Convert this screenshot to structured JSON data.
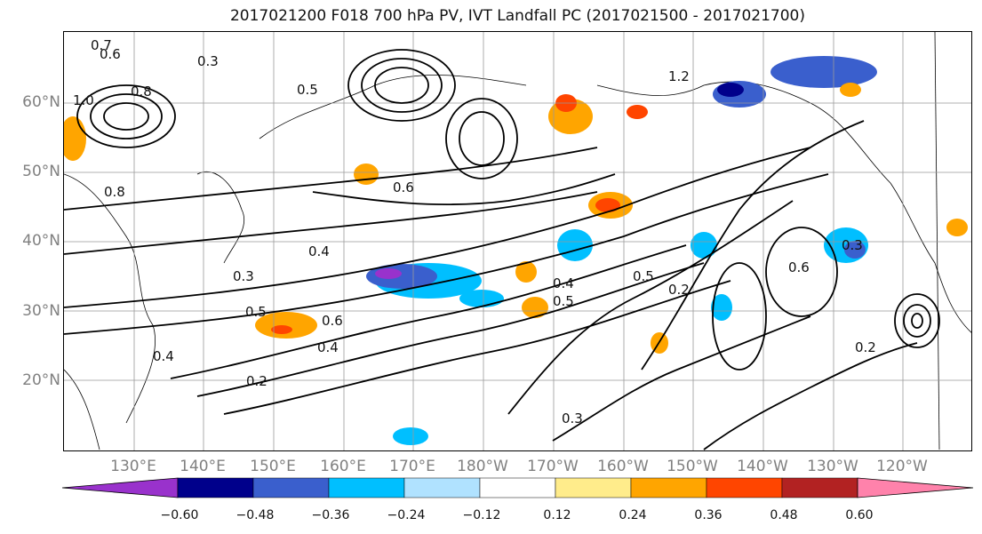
{
  "title": "2017021200 F018 700 hPa PV, IVT Landfall PC (2017021500 - 2017021700)",
  "lat_labels": [
    "60°N",
    "50°N",
    "40°N",
    "30°N",
    "20°N"
  ],
  "lon_labels": [
    "130°E",
    "140°E",
    "150°E",
    "160°E",
    "170°E",
    "180°W",
    "170°W",
    "160°W",
    "150°W",
    "140°W",
    "130°W",
    "120°W"
  ],
  "colorbar": {
    "tick_labels": [
      "−0.60",
      "−0.48",
      "−0.36",
      "−0.24",
      "−0.12",
      "0.12",
      "0.24",
      "0.36",
      "0.48",
      "0.60"
    ],
    "colors": [
      "#9932CC",
      "#00008B",
      "#3A5FCD",
      "#00BFFF",
      "#B0E2FF",
      "#FFFFFF",
      "#FFEC8B",
      "#FFA500",
      "#FF4500",
      "#B22222",
      "#FF82AB"
    ]
  },
  "contour_labels": [
    "0.3",
    "0.6",
    "0.4",
    "0.5",
    "0.7",
    "0.8",
    "1.0",
    "1.2",
    "0.2",
    "0.6",
    "0.4",
    "0.3",
    "0.5",
    "0.4",
    "0.2",
    "0.6",
    "0.5",
    "0.3",
    "0.2",
    "0.6",
    "0.4",
    "0.5",
    "0.3",
    "0.8"
  ]
}
